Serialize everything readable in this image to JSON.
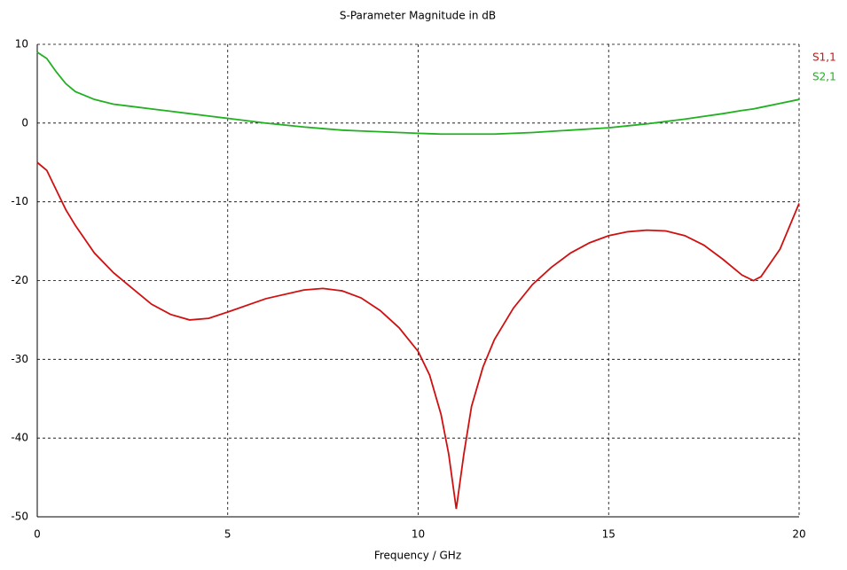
{
  "chart_data": {
    "type": "line",
    "title": "S-Parameter Magnitude in dB",
    "x_label": "Frequency / GHz",
    "x": [
      0,
      0.25,
      0.5,
      0.75,
      1,
      1.5,
      2,
      2.5,
      3,
      3.5,
      4,
      4.5,
      5,
      6,
      7,
      7.5,
      8,
      8.5,
      9,
      9.5,
      10,
      10.3,
      10.6,
      10.8,
      11,
      11.2,
      11.4,
      11.7,
      12,
      12.5,
      13,
      13.5,
      14,
      14.5,
      15,
      15.5,
      16,
      16.5,
      17,
      17.5,
      18,
      18.5,
      18.8,
      19,
      19.5,
      20
    ],
    "series": [
      {
        "name": "S1,1",
        "color": "#d01010",
        "values": [
          -5,
          -6,
          -8.5,
          -11,
          -13,
          -16.5,
          -19,
          -21,
          -23,
          -24.3,
          -25,
          -24.8,
          -24,
          -22.3,
          -21.2,
          -21,
          -21.3,
          -22.2,
          -23.8,
          -26,
          -29,
          -32,
          -37,
          -42,
          -49,
          -42,
          -36,
          -31,
          -27.5,
          -23.5,
          -20.5,
          -18.3,
          -16.5,
          -15.2,
          -14.3,
          -13.8,
          -13.6,
          -13.7,
          -14.3,
          -15.5,
          -17.3,
          -19.3,
          -20,
          -19.5,
          -16,
          -10.2
        ]
      },
      {
        "name": "S2,1",
        "color": "#20b020",
        "values": [
          9,
          8.2,
          6.5,
          5,
          4,
          3,
          2.4,
          2.1,
          1.8,
          1.5,
          1.2,
          0.9,
          0.6,
          0,
          -0.5,
          -0.7,
          -0.9,
          -1,
          -1.1,
          -1.2,
          -1.3,
          -1.35,
          -1.4,
          -1.4,
          -1.4,
          -1.4,
          -1.4,
          -1.4,
          -1.4,
          -1.3,
          -1.2,
          -1.05,
          -0.9,
          -0.75,
          -0.6,
          -0.35,
          -0.1,
          0.2,
          0.5,
          0.85,
          1.2,
          1.6,
          1.8,
          2,
          2.5,
          3
        ]
      }
    ],
    "xlim": [
      0,
      20
    ],
    "xticks": [
      0,
      5,
      10,
      15,
      20
    ],
    "ylim": [
      -50,
      10
    ],
    "yticks": [
      -50,
      -40,
      -30,
      -20,
      -10,
      0,
      10
    ],
    "grid": true,
    "legend": "right"
  }
}
